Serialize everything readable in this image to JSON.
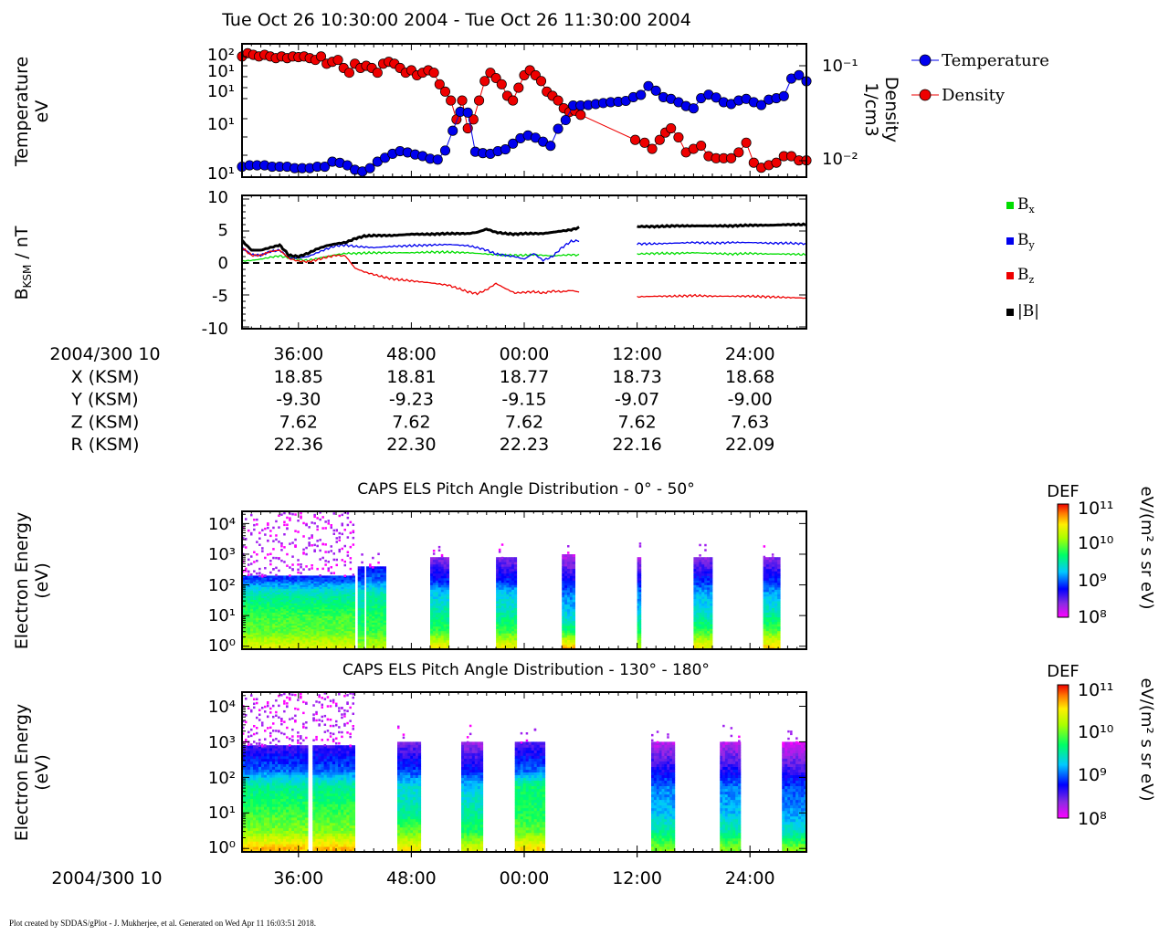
{
  "title": "Tue Oct 26 10:30:00 2004 - Tue Oct 26 11:30:00 2004",
  "footer": "Plot created by SDDAS/gPlot - J. Mukherjee, et al.  Generated on Wed Apr 11 16:03:51 2018.",
  "time_axis": {
    "minutes_range": [
      30,
      90
    ],
    "tick_minutes": [
      36,
      48,
      60,
      72,
      84
    ],
    "tick_labels": [
      "36:00",
      "48:00",
      "00:00",
      "12:00",
      "24:00"
    ],
    "row_header": "2004/300 10"
  },
  "ephemeris": {
    "rows": [
      {
        "label": "X (KSM)",
        "values": [
          "18.85",
          "18.81",
          "18.77",
          "18.73",
          "18.68"
        ]
      },
      {
        "label": "Y (KSM)",
        "values": [
          "-9.30",
          "-9.23",
          "-9.15",
          "-9.07",
          "-9.00"
        ]
      },
      {
        "label": "Z (KSM)",
        "values": [
          "7.62",
          "7.62",
          "7.62",
          "7.62",
          "7.63"
        ]
      },
      {
        "label": "R (KSM)",
        "values": [
          "22.36",
          "22.30",
          "22.23",
          "22.16",
          "22.09"
        ]
      }
    ]
  },
  "colors": {
    "temperature": "#0000ee",
    "density": "#ee0000",
    "bx": "#00dd00",
    "by": "#0000ee",
    "bz": "#ee0000",
    "bmag": "#000000"
  },
  "chart_data": [
    {
      "type": "scatter",
      "panel": "plasma",
      "ylabel_left": [
        "Temperature",
        "eV"
      ],
      "ylabel_right": [
        "Density",
        "1/cm3"
      ],
      "left_tick_labels": [
        "10²",
        "10¹",
        "10¹",
        "10¹",
        "10¹"
      ],
      "right_tick_labels": [
        "10⁻¹",
        "10⁻²"
      ],
      "legend": [
        "Temperature",
        "Density"
      ],
      "series": [
        {
          "name": "Temperature",
          "y_scale": "log",
          "ylim": [
            0.9,
            800
          ],
          "x": [
            30.0,
            30.8,
            31.6,
            32.4,
            33.2,
            34.0,
            34.8,
            35.6,
            36.4,
            37.2,
            38.0,
            38.8,
            39.6,
            40.4,
            41.2,
            42.0,
            42.8,
            43.6,
            44.4,
            45.2,
            46.0,
            46.8,
            47.6,
            48.4,
            49.2,
            50.0,
            50.8,
            51.6,
            52.4,
            53.2,
            54.0,
            54.8,
            55.6,
            56.4,
            57.2,
            58.0,
            58.8,
            59.6,
            60.4,
            61.2,
            62.0,
            62.8,
            63.6,
            64.4,
            65.2,
            66.0,
            66.8,
            67.6,
            68.4,
            69.2,
            70.0,
            70.8,
            71.6,
            72.4,
            73.2,
            74.0,
            74.8,
            75.6,
            76.4,
            77.2,
            78.0,
            78.8,
            79.6,
            80.4,
            81.2,
            82.0,
            82.8,
            83.6,
            84.4,
            85.2,
            86.0,
            86.8,
            87.6,
            88.4,
            89.2,
            90.0
          ],
          "values": [
            1.3,
            1.4,
            1.4,
            1.4,
            1.3,
            1.3,
            1.3,
            1.2,
            1.2,
            1.2,
            1.3,
            1.3,
            1.7,
            1.6,
            1.4,
            1.1,
            1.0,
            1.2,
            1.7,
            2.1,
            2.6,
            3.0,
            2.8,
            2.5,
            2.3,
            2.0,
            1.9,
            3.1,
            9.0,
            25.0,
            24.0,
            2.9,
            2.7,
            2.6,
            3.0,
            3.3,
            4.5,
            6.0,
            7.0,
            6.2,
            5.0,
            4.0,
            10.0,
            16.0,
            35.0,
            35.0,
            36.0,
            38.0,
            40.0,
            42.0,
            43.0,
            45.0,
            55.0,
            62.0,
            100.0,
            78.0,
            55.0,
            50.0,
            42.0,
            34.0,
            30.0,
            52.0,
            63.0,
            54.0,
            42.0,
            38.0,
            46.0,
            50.0,
            42.0,
            36.0,
            48.0,
            52.0,
            58.0,
            150.0,
            180.0,
            130.0
          ]
        },
        {
          "name": "Density",
          "y_scale": "log",
          "ylim": [
            0.0065,
            0.15
          ],
          "x": [
            30.0,
            30.6,
            31.2,
            31.8,
            32.4,
            33.0,
            33.6,
            34.2,
            34.8,
            35.4,
            36.0,
            36.6,
            37.2,
            37.8,
            38.4,
            39.0,
            39.6,
            40.2,
            40.8,
            41.4,
            42.0,
            42.6,
            43.2,
            43.8,
            44.4,
            45.0,
            45.6,
            46.2,
            46.8,
            47.4,
            48.0,
            48.6,
            49.2,
            49.8,
            50.4,
            51.0,
            51.6,
            52.2,
            52.8,
            53.4,
            54.0,
            54.6,
            55.2,
            55.8,
            56.4,
            57.0,
            57.6,
            58.2,
            58.8,
            59.4,
            60.0,
            60.6,
            61.2,
            61.8,
            62.4,
            63.0,
            63.6,
            64.2,
            64.8,
            65.4,
            66.0,
            71.8,
            72.8,
            73.6,
            74.4,
            75.0,
            75.6,
            76.4,
            77.2,
            78.0,
            78.8,
            79.6,
            80.4,
            81.2,
            82.0,
            82.8,
            83.6,
            84.4,
            85.2,
            86.0,
            86.8,
            87.6,
            88.4,
            89.2,
            90.0
          ],
          "values": [
            0.12,
            0.13,
            0.125,
            0.12,
            0.125,
            0.12,
            0.115,
            0.12,
            0.115,
            0.12,
            0.118,
            0.12,
            0.115,
            0.11,
            0.12,
            0.1,
            0.105,
            0.11,
            0.09,
            0.08,
            0.1,
            0.09,
            0.095,
            0.09,
            0.08,
            0.1,
            0.105,
            0.1,
            0.09,
            0.08,
            0.085,
            0.075,
            0.08,
            0.085,
            0.08,
            0.06,
            0.05,
            0.04,
            0.025,
            0.04,
            0.02,
            0.025,
            0.04,
            0.065,
            0.08,
            0.07,
            0.06,
            0.045,
            0.04,
            0.055,
            0.075,
            0.085,
            0.075,
            0.065,
            0.05,
            0.045,
            0.04,
            0.033,
            0.03,
            0.031,
            0.028,
            0.015,
            0.014,
            0.012,
            0.015,
            0.018,
            0.02,
            0.016,
            0.011,
            0.012,
            0.013,
            0.01,
            0.0095,
            0.0095,
            0.0095,
            0.011,
            0.014,
            0.0085,
            0.0075,
            0.008,
            0.0085,
            0.01,
            0.01,
            0.009,
            0.009
          ]
        }
      ]
    },
    {
      "type": "line",
      "panel": "magnetic",
      "ylabel": "BKSM / nT",
      "ylim": [
        -10,
        10
      ],
      "y_ticks": [
        10,
        5,
        0,
        -5,
        -10
      ],
      "y_tick_labels": [
        "10",
        "5",
        "0",
        "-5",
        "-10"
      ],
      "zero_line": true,
      "legend": [
        "Bx",
        "By",
        "Bz",
        "|B|"
      ],
      "data_gap": [
        66.0,
        72.0
      ],
      "series": [
        {
          "name": "Bx",
          "x": [
            30,
            31,
            32,
            33,
            34,
            35,
            36,
            37,
            38,
            39,
            40,
            41,
            42,
            44,
            46,
            48,
            50,
            52,
            54,
            55,
            56,
            57,
            58,
            59,
            60,
            61,
            62,
            63,
            64,
            65,
            66,
            72,
            74,
            76,
            78,
            80,
            82,
            84,
            86,
            88,
            90
          ],
          "values": [
            0.3,
            0.4,
            0.6,
            0.9,
            1.1,
            0.8,
            0.5,
            0.4,
            0.7,
            1.0,
            1.3,
            1.5,
            1.5,
            1.6,
            1.6,
            1.6,
            1.7,
            1.7,
            1.6,
            1.5,
            1.4,
            1.3,
            1.2,
            1.2,
            1.2,
            1.3,
            1.2,
            1.1,
            1.2,
            1.3,
            1.2,
            1.4,
            1.5,
            1.5,
            1.6,
            1.5,
            1.4,
            1.5,
            1.4,
            1.4,
            1.3
          ]
        },
        {
          "name": "By",
          "x": [
            30,
            31,
            32,
            33,
            34,
            35,
            36,
            37,
            38,
            39,
            40,
            41,
            42,
            44,
            46,
            48,
            50,
            52,
            54,
            55,
            56,
            57,
            58,
            59,
            60,
            61,
            62,
            63,
            64,
            65,
            66,
            72,
            74,
            76,
            78,
            80,
            82,
            84,
            86,
            88,
            90
          ],
          "values": [
            2.4,
            1.3,
            1.2,
            1.8,
            2.0,
            0.8,
            0.8,
            1.0,
            1.6,
            2.2,
            2.7,
            2.8,
            2.6,
            2.4,
            2.6,
            2.7,
            2.8,
            2.9,
            2.7,
            2.4,
            2.0,
            1.4,
            1.2,
            1.0,
            0.6,
            1.5,
            0.4,
            1.0,
            2.4,
            3.4,
            3.5,
            3.0,
            3.0,
            3.1,
            3.2,
            3.1,
            3.2,
            3.2,
            3.1,
            3.1,
            3.0
          ]
        },
        {
          "name": "Bz",
          "x": [
            30,
            31,
            32,
            33,
            34,
            35,
            36,
            37,
            38,
            39,
            40,
            41,
            42,
            43,
            44,
            45,
            46,
            48,
            50,
            52,
            54,
            55,
            56,
            57,
            58,
            59,
            60,
            61,
            62,
            63,
            64,
            65,
            66,
            72,
            74,
            76,
            78,
            80,
            82,
            84,
            86,
            88,
            90
          ],
          "values": [
            2.4,
            1.2,
            1.2,
            1.8,
            2.0,
            0.7,
            0.3,
            0.2,
            0.5,
            0.9,
            1.2,
            1.1,
            -0.8,
            -1.4,
            -1.8,
            -2.2,
            -2.5,
            -2.8,
            -3.1,
            -3.5,
            -4.5,
            -4.8,
            -4.2,
            -3.2,
            -4.0,
            -4.7,
            -4.6,
            -4.5,
            -4.7,
            -4.4,
            -4.5,
            -4.3,
            -4.6,
            -5.3,
            -5.2,
            -5.2,
            -5.1,
            -5.2,
            -5.2,
            -5.2,
            -5.3,
            -5.4,
            -5.5
          ]
        },
        {
          "name": "|B|",
          "x": [
            30,
            31,
            32,
            33,
            34,
            35,
            36,
            37,
            38,
            39,
            40,
            41,
            42,
            43,
            44,
            46,
            48,
            50,
            52,
            54,
            55,
            56,
            57,
            58,
            59,
            60,
            61,
            62,
            63,
            64,
            65,
            66,
            72,
            74,
            76,
            78,
            80,
            82,
            84,
            86,
            88,
            90
          ],
          "values": [
            3.5,
            2.0,
            2.0,
            2.4,
            2.8,
            1.2,
            1.0,
            1.5,
            2.2,
            2.7,
            3.0,
            3.2,
            3.8,
            4.2,
            4.3,
            4.3,
            4.5,
            4.5,
            4.6,
            4.6,
            4.8,
            5.3,
            4.8,
            4.6,
            4.5,
            4.6,
            4.6,
            4.6,
            4.8,
            5.0,
            5.2,
            5.6,
            5.7,
            5.7,
            5.8,
            5.8,
            5.8,
            5.8,
            5.9,
            5.9,
            6.0,
            6.0
          ]
        }
      ]
    },
    {
      "type": "heatmap",
      "panel": "els_0_50",
      "title": "CAPS ELS Pitch Angle Distribution - 0° - 50°",
      "ylabel": [
        "Electron Energy",
        "(eV)"
      ],
      "y_scale": "log",
      "ylim": [
        0.8,
        25000
      ],
      "y_tick_labels": [
        "10⁴",
        "10³",
        "10²",
        "10¹",
        "10⁰"
      ],
      "colorbar": {
        "title": "DEF",
        "unit": "eV/(m² s sr eV)",
        "tick_labels": [
          "10¹¹",
          "10¹⁰",
          "10⁹",
          "10⁸"
        ],
        "range_log10": [
          8,
          11
        ]
      },
      "bands": [
        {
          "t": [
            30.0,
            42.0
          ],
          "top": 200,
          "levels": [
            10.3,
            9.9,
            9.8,
            9.4,
            8.9
          ],
          "dense": true
        },
        {
          "t": [
            42.3,
            43.0
          ],
          "top": 400,
          "levels": [
            10.1,
            9.7,
            9.6,
            9.3,
            8.9
          ]
        },
        {
          "t": [
            43.2,
            45.3
          ],
          "top": 400,
          "levels": [
            10.2,
            9.8,
            9.7,
            9.4,
            9.0
          ]
        },
        {
          "t": [
            50.0,
            52.0
          ],
          "top": 800,
          "levels": [
            10.4,
            9.8,
            9.5,
            9.2,
            8.8
          ]
        },
        {
          "t": [
            57.0,
            59.2
          ],
          "top": 800,
          "levels": [
            10.4,
            9.8,
            9.5,
            9.2,
            8.8
          ]
        },
        {
          "t": [
            64.0,
            65.4
          ],
          "top": 1000,
          "levels": [
            10.6,
            9.7,
            9.3,
            9.0,
            8.7
          ]
        },
        {
          "t": [
            72.0,
            72.4
          ],
          "top": 800,
          "levels": [
            10.2,
            9.7,
            9.3,
            9.0,
            8.7
          ]
        },
        {
          "t": [
            78.0,
            80.0
          ],
          "top": 800,
          "levels": [
            10.4,
            9.8,
            9.4,
            9.1,
            8.8
          ]
        },
        {
          "t": [
            85.4,
            87.2
          ],
          "top": 800,
          "levels": [
            10.5,
            9.9,
            9.5,
            9.1,
            8.8
          ]
        }
      ]
    },
    {
      "type": "heatmap",
      "panel": "els_130_180",
      "title": "CAPS ELS Pitch Angle Distribution - 130° - 180°",
      "ylabel": [
        "Electron Energy",
        "(eV)"
      ],
      "y_scale": "log",
      "ylim": [
        0.8,
        25000
      ],
      "y_tick_labels": [
        "10⁴",
        "10³",
        "10²",
        "10¹",
        "10⁰"
      ],
      "colorbar": {
        "title": "DEF",
        "unit": "eV/(m² s sr eV)",
        "tick_labels": [
          "10¹¹",
          "10¹⁰",
          "10⁹",
          "10⁸"
        ],
        "range_log10": [
          8,
          11
        ]
      },
      "bands": [
        {
          "t": [
            30.0,
            37.0
          ],
          "top": 800,
          "levels": [
            10.6,
            10.0,
            9.8,
            9.5,
            9.0
          ],
          "dense": true
        },
        {
          "t": [
            37.5,
            42.0
          ],
          "top": 800,
          "levels": [
            10.6,
            10.0,
            9.8,
            9.5,
            9.0
          ],
          "dense": true
        },
        {
          "t": [
            46.5,
            49.0
          ],
          "top": 1000,
          "levels": [
            10.4,
            9.9,
            9.5,
            9.3,
            8.9
          ]
        },
        {
          "t": [
            53.3,
            55.6
          ],
          "top": 1000,
          "levels": [
            10.3,
            9.7,
            9.5,
            9.2,
            8.8
          ]
        },
        {
          "t": [
            59.0,
            62.2
          ],
          "top": 1000,
          "levels": [
            10.5,
            9.9,
            9.7,
            9.6,
            9.0
          ]
        },
        {
          "t": [
            73.5,
            76.0
          ],
          "top": 1000,
          "levels": [
            10.0,
            9.5,
            9.2,
            9.0,
            8.7
          ]
        },
        {
          "t": [
            80.8,
            83.0
          ],
          "top": 1000,
          "levels": [
            10.0,
            9.5,
            9.2,
            9.0,
            8.7
          ]
        },
        {
          "t": [
            87.4,
            90.0
          ],
          "top": 1000,
          "levels": [
            10.0,
            9.4,
            9.1,
            8.9,
            8.6
          ]
        }
      ]
    }
  ]
}
